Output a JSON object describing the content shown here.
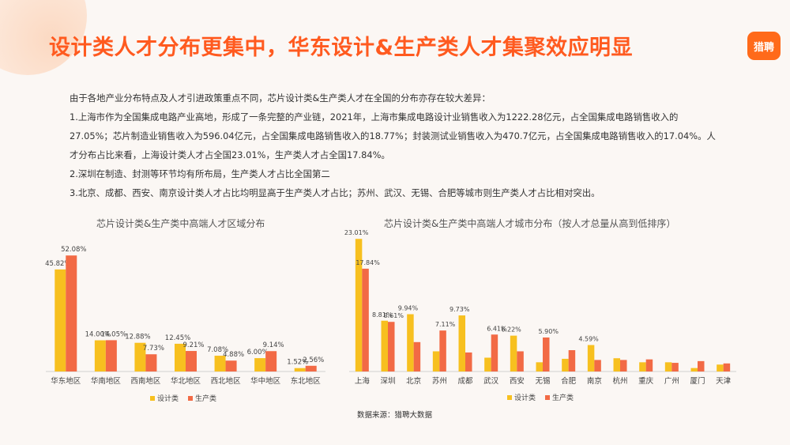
{
  "title": "设计类人才分布更集中，华东设计&生产类人才集聚效应明显",
  "logo_text": "猎聘",
  "intro": [
    "由于各地产业分布特点及人才引进政策重点不同，芯片设计类&生产类人才在全国的分布亦存在较大差异：",
    "1.上海市作为全国集成电路产业高地，形成了一条完整的产业链，2021年，上海市集成电路设计业销售收入为1222.28亿元，占全国集成电路销售收入的",
    "27.05%；芯片制造业销售收入为596.04亿元，占全国集成电路销售收入的18.77%；封装测试业销售收入为470.7亿元，占全国集成电路销售收入的17.04%。人",
    "才分布占比来看，上海设计类人才占全国23.01%，生产类人才占全国17.84%。",
    "2.深圳在制造、封测等环节均有所布局，生产类人才占比全国第二",
    "3.北京、成都、西安、南京设计类人才占比均明显高于生产类人才占比；苏州、武汉、无锡、合肥等城市则生产类人才占比相对突出。"
  ],
  "source": "数据来源：猎聘大数据",
  "colors": {
    "design": "#f7c01f",
    "production": "#f26a45",
    "title": "#ff5a1f"
  },
  "chart_data": [
    {
      "type": "bar",
      "title": "芯片设计类&生产类中高端人才区域分布",
      "categories": [
        "华东地区",
        "华南地区",
        "西南地区",
        "华北地区",
        "西北地区",
        "华中地区",
        "东北地区"
      ],
      "series": [
        {
          "name": "设计类",
          "values": [
            45.82,
            14.0,
            12.88,
            12.45,
            7.08,
            6.0,
            1.52
          ]
        },
        {
          "name": "生产类",
          "values": [
            52.08,
            14.05,
            7.73,
            9.21,
            4.88,
            9.14,
            2.56
          ]
        }
      ],
      "labels": {
        "设计类": [
          "45.82%",
          "14.00%",
          "12.88%",
          "12.45%",
          "7.08%",
          "6.00%",
          "1.52%"
        ],
        "生产类": [
          "52.08%",
          "14.05%",
          "7.73%",
          "9.21%",
          "4.88%",
          "9.14%",
          "2.56%"
        ]
      },
      "legend": "bottom",
      "ylim": [
        0,
        55
      ]
    },
    {
      "type": "bar",
      "title": "芯片设计类&生产类中高端人才城市分布（按人才总量从高到低排序）",
      "categories": [
        "上海",
        "深圳",
        "北京",
        "苏州",
        "成都",
        "武汉",
        "西安",
        "无锡",
        "合肥",
        "南京",
        "杭州",
        "重庆",
        "广州",
        "厦门",
        "天津"
      ],
      "series": [
        {
          "name": "设计类",
          "values": [
            23.01,
            8.81,
            9.94,
            3.5,
            9.73,
            2.4,
            6.22,
            1.6,
            2.2,
            4.59,
            2.3,
            1.6,
            1.6,
            0.6,
            1.2
          ]
        },
        {
          "name": "生产类",
          "values": [
            17.84,
            8.61,
            5.1,
            7.11,
            3.3,
            6.41,
            3.5,
            5.9,
            3.7,
            2.0,
            2.0,
            2.1,
            1.5,
            1.8,
            1.4
          ]
        }
      ],
      "labels": {
        "设计类": [
          "23.01%",
          "8.81%",
          "9.94%",
          "",
          "9.73%",
          "",
          "6.22%",
          "",
          "",
          "4.59%",
          "",
          "",
          "",
          "",
          ""
        ],
        "生产类": [
          "17.84%",
          "8.61%",
          "",
          "7.11%",
          "",
          "6.41%",
          "",
          "5.90%",
          "",
          "",
          "",
          "",
          "",
          "",
          ""
        ]
      },
      "legend": "bottom",
      "ylim": [
        0,
        24
      ]
    }
  ]
}
